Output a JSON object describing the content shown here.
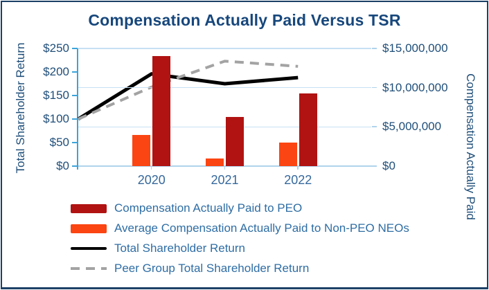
{
  "chart_data": {
    "type": "combo-bar-line",
    "title": "Compensation Actually Paid Versus TSR",
    "x_categories": [
      "2020",
      "2021",
      "2022"
    ],
    "left_axis": {
      "label": "Total Shareholder Return",
      "range": [
        0,
        250
      ],
      "ticks": [
        "$0",
        "$50",
        "$100",
        "$150",
        "$200",
        "$250"
      ],
      "tick_values": [
        0,
        50,
        100,
        150,
        200,
        250
      ]
    },
    "right_axis": {
      "label": "Compensation Actually Paid",
      "range": [
        0,
        15000000
      ],
      "ticks": [
        "$0",
        "$5,000,000",
        "$10,000,000",
        "$15,000,000"
      ],
      "tick_values": [
        0,
        5000000,
        10000000,
        15000000
      ]
    },
    "series": [
      {
        "name": "Compensation Actually Paid to PEO",
        "type": "bar",
        "axis": "right",
        "color": "#B01312",
        "values": [
          14000000,
          6300000,
          9300000
        ]
      },
      {
        "name": "Average Compensation Actually Paid to Non-PEO NEOs",
        "type": "bar",
        "axis": "right",
        "color": "#FB4512",
        "values": [
          4000000,
          1000000,
          3000000
        ]
      },
      {
        "name": "Total Shareholder Return",
        "type": "line",
        "line_style": "solid",
        "axis": "left",
        "color": "#000000",
        "values": [
          100,
          196,
          175,
          188
        ],
        "x_note": "first point sits on the left axis; remaining points at year centers"
      },
      {
        "name": "Peer Group Total Shareholder Return",
        "type": "line",
        "line_style": "dashed",
        "axis": "left",
        "color": "#A3A3A3",
        "values": [
          100,
          168,
          223,
          212
        ],
        "x_note": "first point sits on the left axis; remaining points at year centers"
      }
    ],
    "gridlines": "horizontal lines at right-axis tick values",
    "legend_position": "bottom-left"
  },
  "colors": {
    "frame_border": "#1B4066",
    "title_text": "#17477C",
    "axis_tick_text": "#1F4E79",
    "axis_title_text": "#1F4E79",
    "category_text": "#35689C",
    "legend_text": "#2E6DA4",
    "axis_line": "#3BA4DA",
    "gridline": "#C6DFF3",
    "baseline": "#AFD3EC",
    "background": "#FFFFFF"
  }
}
